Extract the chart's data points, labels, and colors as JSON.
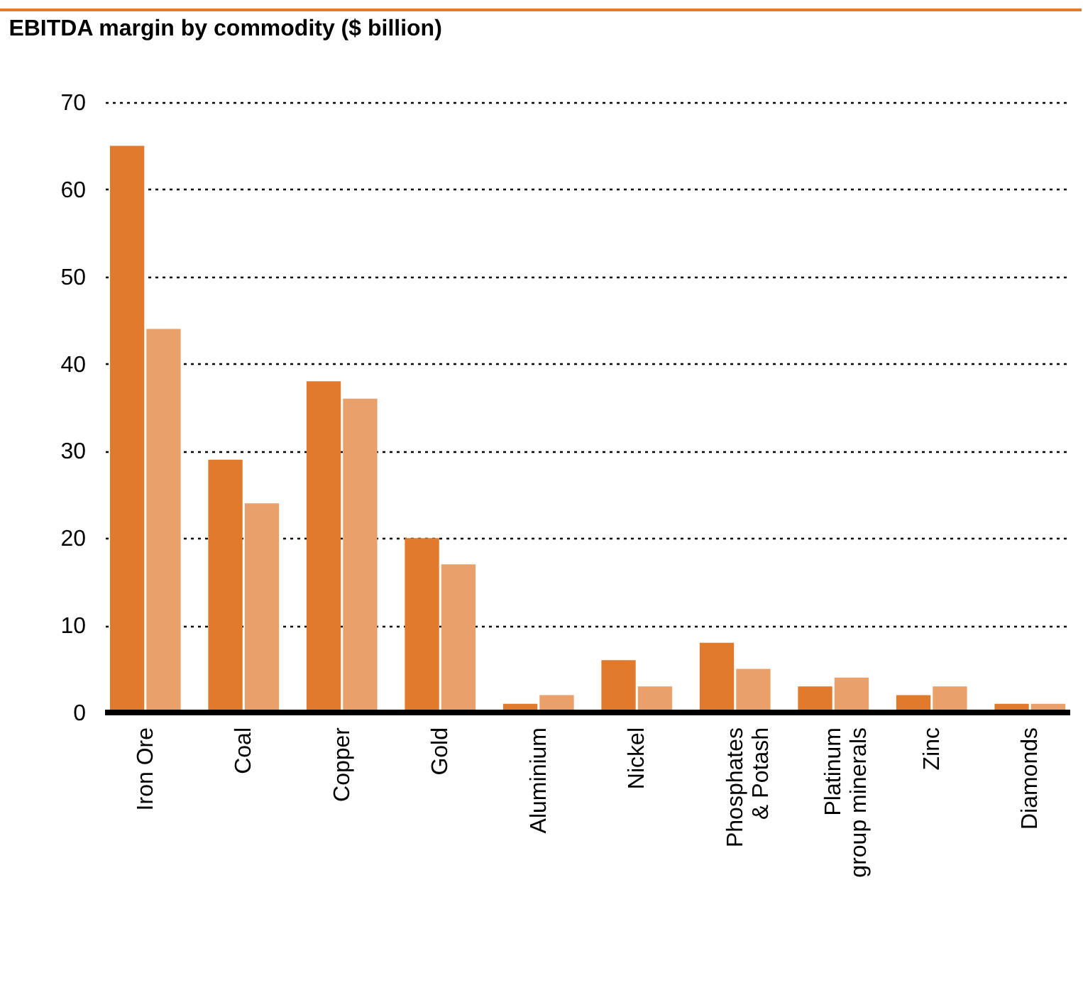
{
  "chart_data": {
    "type": "bar",
    "title": "EBITDA margin by commodity ($ billion)",
    "categories": [
      "Iron Ore",
      "Coal",
      "Copper",
      "Gold",
      "Aluminium",
      "Nickel",
      "Phosphates & Potash",
      "Platinum group minerals",
      "Zinc",
      "Diamonds"
    ],
    "series": [
      {
        "color": "#e07b2e",
        "values": [
          65,
          29,
          38,
          20,
          1,
          6,
          8,
          3,
          2,
          1
        ]
      },
      {
        "color": "#e9a06a",
        "values": [
          44,
          24,
          36,
          17,
          2,
          3,
          5,
          4,
          3,
          1
        ]
      }
    ],
    "ylim": [
      0,
      70
    ],
    "yticks": [
      0,
      10,
      20,
      30,
      40,
      50,
      60,
      70
    ],
    "grid": "y",
    "legend": false
  }
}
